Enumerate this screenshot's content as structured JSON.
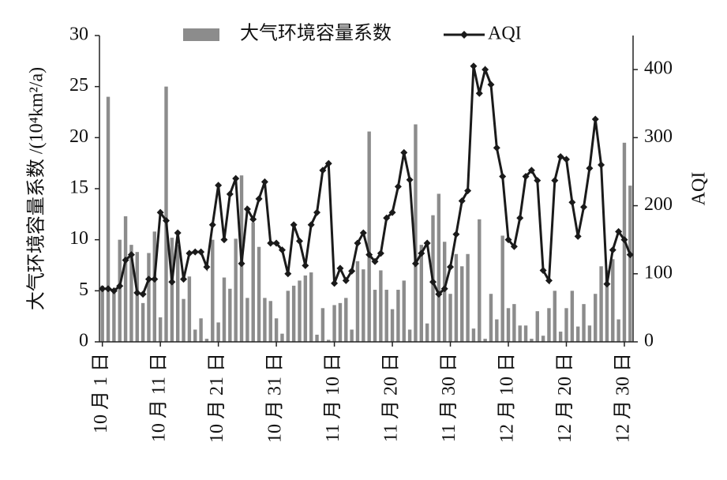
{
  "chart_data": {
    "type": "bar",
    "y_label": "大气环境容量系数 /(10⁴km²/a)",
    "y2_label": "AQI",
    "categories": [
      "10 月 1 日",
      null,
      null,
      null,
      null,
      null,
      null,
      null,
      null,
      null,
      "10 月 11 日",
      null,
      null,
      null,
      null,
      null,
      null,
      null,
      null,
      null,
      "10 月 21 日",
      null,
      null,
      null,
      null,
      null,
      null,
      null,
      null,
      null,
      "10 月 31 日",
      null,
      null,
      null,
      null,
      null,
      null,
      null,
      null,
      null,
      "11 月 10 日",
      null,
      null,
      null,
      null,
      null,
      null,
      null,
      null,
      null,
      "11 月 20 日",
      null,
      null,
      null,
      null,
      null,
      null,
      null,
      null,
      null,
      "11 月 30 日",
      null,
      null,
      null,
      null,
      null,
      null,
      null,
      null,
      null,
      "12 月 10 日",
      null,
      null,
      null,
      null,
      null,
      null,
      null,
      null,
      null,
      "12 月 20 日",
      null,
      null,
      null,
      null,
      null,
      null,
      null,
      null,
      null,
      "12 月 30 日",
      null
    ],
    "series": [
      {
        "name": "大气环境容量系数",
        "type": "bar",
        "color": "#8c8c8c",
        "axis": "y",
        "values": [
          5.5,
          24,
          5,
          10,
          12.3,
          9.5,
          8.8,
          3.8,
          8.7,
          10.8,
          2.4,
          25,
          10.2,
          9.5,
          4.2,
          6.4,
          1.2,
          2.3,
          0.3,
          10,
          1.9,
          6.3,
          5.2,
          10.1,
          16.3,
          4.3,
          11.7,
          9.3,
          4.3,
          4,
          2.3,
          0.8,
          5,
          5.5,
          6,
          6.5,
          6.8,
          0.7,
          3.3,
          0.2,
          3.6,
          3.8,
          4.3,
          1.2,
          7.9,
          7.1,
          20.6,
          5.1,
          7,
          5.1,
          3.2,
          5.1,
          6,
          1.2,
          21.3,
          9.5,
          1.8,
          12.4,
          14.5,
          9.8,
          4.7,
          8.6,
          7.4,
          8.6,
          1.3,
          12,
          0.3,
          4.7,
          2.2,
          10.4,
          3.3,
          3.7,
          1.6,
          1.6,
          0.3,
          3,
          0.6,
          3.3,
          5,
          1,
          3.3,
          5,
          1.5,
          3.7,
          1.6,
          4.7,
          7.4,
          7,
          8.1,
          2.2,
          19.5,
          15.3
        ]
      },
      {
        "name": "AQI",
        "type": "line",
        "color": "#1a1a1a",
        "axis": "y2",
        "values": [
          78,
          78,
          75,
          82,
          120,
          128,
          72,
          70,
          92,
          92,
          190,
          178,
          88,
          160,
          92,
          130,
          132,
          132,
          110,
          172,
          230,
          150,
          217,
          240,
          115,
          195,
          180,
          210,
          235,
          145,
          145,
          135,
          100,
          172,
          148,
          112,
          172,
          190,
          252,
          262,
          86,
          108,
          90,
          104,
          145,
          160,
          128,
          118,
          130,
          182,
          190,
          228,
          278,
          238,
          115,
          130,
          145,
          88,
          70,
          78,
          110,
          158,
          207,
          222,
          405,
          365,
          400,
          378,
          285,
          243,
          150,
          140,
          182,
          243,
          252,
          237,
          105,
          90,
          237,
          272,
          268,
          205,
          155,
          198,
          255,
          327,
          260,
          85,
          135,
          162,
          150,
          128
        ]
      }
    ],
    "ylim": [
      0,
      30
    ],
    "yticks": [
      0,
      5,
      10,
      15,
      20,
      25,
      30
    ],
    "y2lim": [
      0,
      450
    ],
    "y2ticks": [
      0,
      100,
      200,
      300,
      400
    ],
    "legend": "top"
  }
}
